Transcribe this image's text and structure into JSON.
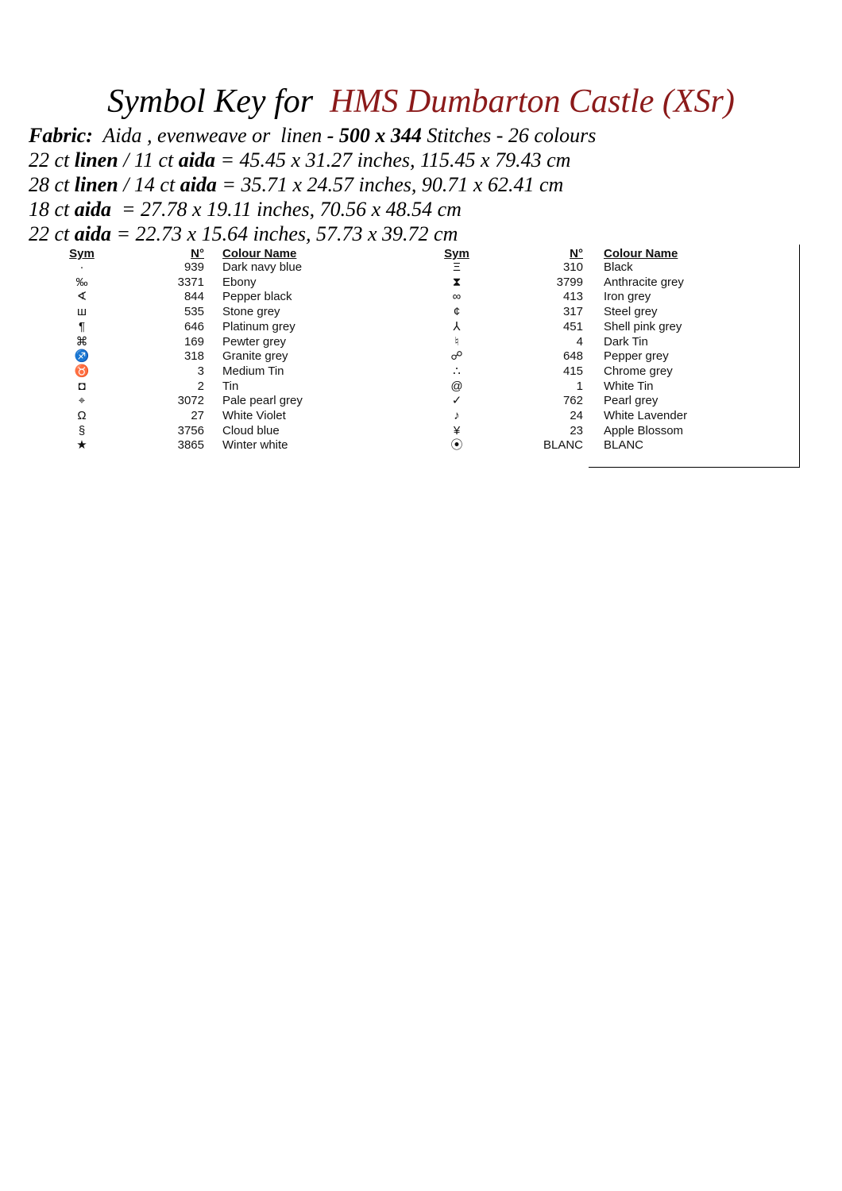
{
  "header": {
    "title_lead": "Symbol Key for",
    "title_name": "HMS Dumbarton Castle (XSr)"
  },
  "fabric_lines": [
    [
      {
        "text": "Fabric:",
        "bold": true
      },
      {
        "text": "  Aida , evenweave or  linen ",
        "bold": false
      },
      {
        "text": "- 500 x 344",
        "bold": true
      },
      {
        "text": " Stitches - 26 colours",
        "bold": false
      }
    ],
    [
      {
        "text": "22 ct ",
        "bold": false
      },
      {
        "text": "linen",
        "bold": true
      },
      {
        "text": " / 11 ct ",
        "bold": false
      },
      {
        "text": "aida",
        "bold": true
      },
      {
        "text": " = 45.45 x 31.27 inches, 115.45 x 79.43 cm",
        "bold": false
      }
    ],
    [
      {
        "text": "28 ct ",
        "bold": false
      },
      {
        "text": "linen",
        "bold": true
      },
      {
        "text": " / 14 ct ",
        "bold": false
      },
      {
        "text": "aida",
        "bold": true
      },
      {
        "text": " = 35.71 x 24.57 inches, 90.71 x 62.41 cm",
        "bold": false
      }
    ],
    [
      {
        "text": "18 ct ",
        "bold": false
      },
      {
        "text": "aida",
        "bold": true
      },
      {
        "text": "  = 27.78 x 19.11 inches, 70.56 x 48.54 cm",
        "bold": false
      }
    ],
    [
      {
        "text": "22 ct ",
        "bold": false
      },
      {
        "text": "aida",
        "bold": true
      },
      {
        "text": " = 22.73 x 15.64 inches, 57.73 x 39.72 cm",
        "bold": false
      }
    ]
  ],
  "tables": [
    {
      "headers": [
        "Sym",
        "N°",
        "Colour Name"
      ],
      "rows": [
        [
          "·",
          "939",
          "Dark navy blue"
        ],
        [
          "‰",
          "3371",
          "Ebony"
        ],
        [
          "∢",
          "844",
          "Pepper black"
        ],
        [
          "ш",
          "535",
          "Stone grey"
        ],
        [
          "¶",
          "646",
          "Platinum grey"
        ],
        [
          "⌘",
          "169",
          "Pewter grey"
        ],
        [
          "♐",
          "318",
          "Granite grey"
        ],
        [
          "♉",
          "3",
          "Medium Tin"
        ],
        [
          "◘",
          "2",
          "Tin"
        ],
        [
          "⌖",
          "3072",
          "Pale pearl grey"
        ],
        [
          "Ω",
          "27",
          "White Violet"
        ],
        [
          "§",
          "3756",
          "Cloud blue"
        ],
        [
          "★",
          "3865",
          "Winter white"
        ]
      ]
    },
    {
      "headers": [
        "Sym",
        "N°",
        "Colour Name"
      ],
      "rows": [
        [
          "Ξ",
          "310",
          "Black"
        ],
        [
          "⧗",
          "3799",
          "Anthracite grey"
        ],
        [
          "∞",
          "413",
          "Iron grey"
        ],
        [
          "¢",
          "317",
          "Steel grey"
        ],
        [
          "⅄",
          "451",
          "Shell pink grey"
        ],
        [
          "♮",
          "4",
          "Dark Tin"
        ],
        [
          "☍",
          "648",
          "Pepper grey"
        ],
        [
          "∴",
          "415",
          "Chrome grey"
        ],
        [
          "@",
          "1",
          "White Tin"
        ],
        [
          "✓",
          "762",
          "Pearl grey"
        ],
        [
          "♪",
          "24",
          "White Lavender"
        ],
        [
          "¥",
          "23",
          "Apple Blossom"
        ],
        [
          "⦿",
          "BLANC",
          "BLANC"
        ]
      ]
    }
  ]
}
